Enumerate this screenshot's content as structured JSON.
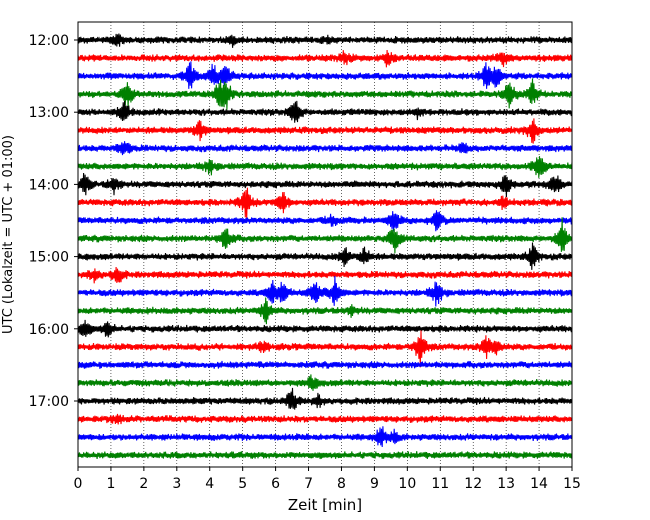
{
  "chart_data": {
    "type": "line",
    "chart_kind": "helicorder seismogram",
    "xlabel": "Zeit  [min]",
    "ylabel": "UTC (Lokalzeit = UTC + 01:00)",
    "xlim": [
      0,
      15
    ],
    "x_ticks": [
      "0",
      "1",
      "2",
      "3",
      "4",
      "5",
      "6",
      "7",
      "8",
      "9",
      "10",
      "11",
      "12",
      "13",
      "14",
      "15"
    ],
    "y_ticks": [
      "12:00",
      "13:00",
      "14:00",
      "15:00",
      "16:00",
      "17:00"
    ],
    "grid": "vertical dotted lines at each minute",
    "trace_colors": [
      "#000000",
      "#ff0000",
      "#0000ff",
      "#008000"
    ],
    "traces": [
      {
        "start": "12:00",
        "color": "#000000",
        "events": [
          [
            1.2,
            0.25
          ],
          [
            4.7,
            0.2
          ],
          [
            7.6,
            0.15
          ]
        ]
      },
      {
        "start": "12:15",
        "color": "#ff0000",
        "events": [
          [
            8.1,
            0.3
          ],
          [
            9.4,
            0.35
          ],
          [
            12.9,
            0.3
          ]
        ]
      },
      {
        "start": "12:30",
        "color": "#0000ff",
        "events": [
          [
            3.4,
            0.7
          ],
          [
            4.1,
            0.6
          ],
          [
            4.5,
            0.5
          ],
          [
            12.4,
            0.6
          ],
          [
            12.7,
            0.5
          ]
        ]
      },
      {
        "start": "12:45",
        "color": "#008000",
        "events": [
          [
            1.5,
            0.7
          ],
          [
            4.3,
            0.6
          ],
          [
            4.5,
            0.7
          ],
          [
            13.1,
            0.7
          ],
          [
            13.8,
            0.6
          ]
        ]
      },
      {
        "start": "13:00",
        "color": "#000000",
        "events": [
          [
            1.4,
            0.45
          ],
          [
            6.6,
            0.6
          ],
          [
            10.3,
            0.25
          ]
        ]
      },
      {
        "start": "13:15",
        "color": "#ff0000",
        "events": [
          [
            3.7,
            0.45
          ],
          [
            13.8,
            0.7
          ]
        ]
      },
      {
        "start": "13:30",
        "color": "#0000ff",
        "events": [
          [
            1.4,
            0.4
          ],
          [
            11.7,
            0.2
          ]
        ]
      },
      {
        "start": "13:45",
        "color": "#008000",
        "events": [
          [
            4.0,
            0.4
          ],
          [
            14.0,
            0.7
          ]
        ]
      },
      {
        "start": "14:00",
        "color": "#000000",
        "events": [
          [
            0.2,
            0.5
          ],
          [
            1.1,
            0.4
          ],
          [
            13.0,
            0.5
          ],
          [
            14.5,
            0.5
          ]
        ]
      },
      {
        "start": "14:15",
        "color": "#ff0000",
        "events": [
          [
            5.1,
            0.75
          ],
          [
            6.2,
            0.6
          ],
          [
            12.9,
            0.25
          ]
        ]
      },
      {
        "start": "14:30",
        "color": "#0000ff",
        "events": [
          [
            7.7,
            0.25
          ],
          [
            9.6,
            0.5
          ],
          [
            10.9,
            0.5
          ]
        ]
      },
      {
        "start": "14:45",
        "color": "#008000",
        "events": [
          [
            4.5,
            0.6
          ],
          [
            9.6,
            0.75
          ],
          [
            14.7,
            0.8
          ]
        ]
      },
      {
        "start": "15:00",
        "color": "#000000",
        "events": [
          [
            8.1,
            0.45
          ],
          [
            8.7,
            0.4
          ],
          [
            13.8,
            0.55
          ]
        ]
      },
      {
        "start": "15:15",
        "color": "#ff0000",
        "events": [
          [
            0.5,
            0.3
          ],
          [
            1.2,
            0.45
          ]
        ]
      },
      {
        "start": "15:30",
        "color": "#0000ff",
        "events": [
          [
            5.9,
            0.5
          ],
          [
            6.2,
            0.5
          ],
          [
            7.2,
            0.55
          ],
          [
            7.8,
            0.65
          ],
          [
            10.9,
            0.7
          ]
        ]
      },
      {
        "start": "15:45",
        "color": "#008000",
        "events": [
          [
            5.7,
            0.6
          ],
          [
            8.3,
            0.2
          ]
        ]
      },
      {
        "start": "16:00",
        "color": "#000000",
        "events": [
          [
            0.2,
            0.4
          ],
          [
            0.9,
            0.35
          ]
        ]
      },
      {
        "start": "16:15",
        "color": "#ff0000",
        "events": [
          [
            5.6,
            0.25
          ],
          [
            10.4,
            0.9
          ],
          [
            12.4,
            0.55
          ],
          [
            12.7,
            0.3
          ]
        ]
      },
      {
        "start": "16:30",
        "color": "#0000ff",
        "events": []
      },
      {
        "start": "16:45",
        "color": "#008000",
        "events": [
          [
            7.1,
            0.35
          ]
        ]
      },
      {
        "start": "17:00",
        "color": "#000000",
        "events": [
          [
            6.5,
            0.55
          ],
          [
            7.3,
            0.25
          ]
        ]
      },
      {
        "start": "17:15",
        "color": "#ff0000",
        "events": [
          [
            1.2,
            0.2
          ]
        ]
      },
      {
        "start": "17:30",
        "color": "#0000ff",
        "events": [
          [
            9.2,
            0.5
          ],
          [
            9.6,
            0.25
          ]
        ]
      },
      {
        "start": "17:45",
        "color": "#008000",
        "events": []
      }
    ]
  }
}
